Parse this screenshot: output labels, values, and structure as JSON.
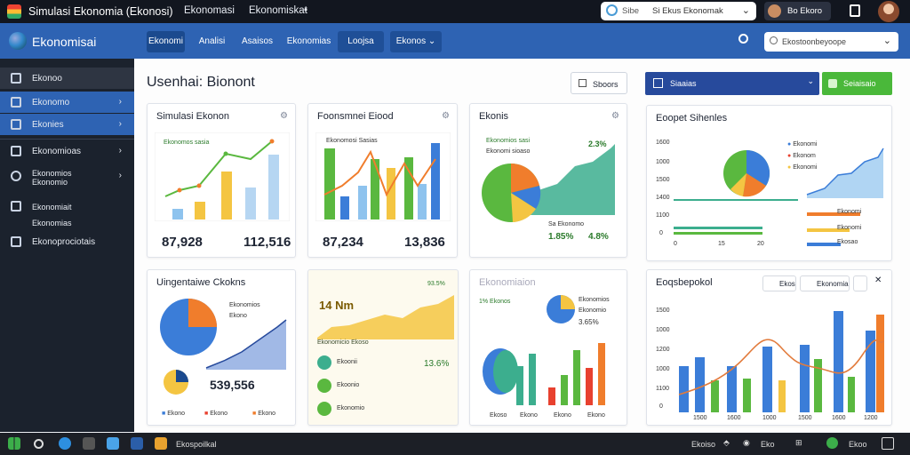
{
  "titlebar": {
    "title": "Simulasi Ekonomia (Ekonosi)",
    "menu": [
      "Ekonomasi",
      "Ekonomiskat"
    ],
    "search_text": "Si Ekus Ekonomak",
    "user_label": "Bo Ekoro"
  },
  "navbar": {
    "brand": "Ekonomisai",
    "tabs": [
      "Ekonomi",
      "Analisi",
      "Asaisos",
      "Ekonomias",
      "Loojsa",
      "Ekonos"
    ],
    "search_placeholder": "Ekostoonbeyoope"
  },
  "sidebar": {
    "items": [
      {
        "label": "Ekonoo",
        "icon": "monitor-icon"
      },
      {
        "label": "Ekonomo",
        "icon": "grid-icon",
        "chevron": "›"
      },
      {
        "label": "Ekonies",
        "icon": "tree-icon",
        "chevron": "›"
      },
      {
        "label": "Ekonomioas",
        "icon": "doc-icon",
        "chevron": "›"
      },
      {
        "label": "Ekonomios\nEkonomio",
        "icon": "link-icon",
        "chevron": "›"
      },
      {
        "label": "Ekonomiait\nEkonomias",
        "icon": "card-icon"
      },
      {
        "label": "Ekonoprociotais",
        "icon": "box-icon"
      }
    ]
  },
  "page": {
    "title": "Usenhai: Bionont",
    "share_label": "Sboors",
    "select_label": "Siaaias",
    "green_button": "Seiaisaio"
  },
  "cards": {
    "c1": {
      "title": "Simulasi Ekonon",
      "value_left": "87,928",
      "value_right": "112,516",
      "legend": "Ekonomos sasia"
    },
    "c2": {
      "title": "Foonsmnei Eiood",
      "value_left": "87,234",
      "value_right": "13,836",
      "legend": "Ekonomosi Sasias"
    },
    "c3": {
      "title": "Ekonis",
      "legend_top": "Ekonomios sasi",
      "legend_sub": "Ekonomi sioaso",
      "pct_top": "2.3%",
      "legend_mid": "Sa Ekonomo",
      "pct_left": "1.85%",
      "pct_right": "4.8%"
    },
    "c4": {
      "title": "Eoopet Sihenles",
      "legend": [
        "Ekonomi",
        "Ekonom",
        "Ekonomi"
      ],
      "axis": [
        "1600",
        "1000",
        "1500",
        "1400",
        "1100",
        "0"
      ],
      "pills": [
        "Ekonomi",
        "Ekonomi",
        "Ekosao"
      ],
      "bottom_axis": [
        "0",
        "15",
        "20"
      ]
    },
    "c5": {
      "title": "Uingentaiwe Ckokns",
      "legend_a": "Ekonomios",
      "legend_b": "Ekono",
      "value": "539,556",
      "legend": [
        "Ekono",
        "Ekono",
        "Ekono"
      ]
    },
    "c6": {
      "title": "14 Nm",
      "pct_top": "93.5%",
      "legend": "Ekonomicio Ekoso",
      "rows": [
        "Ekoonii",
        "Ekoonio",
        "Ekonomio"
      ],
      "pct": "13.6%"
    },
    "c7": {
      "title": "Ekonomiaion",
      "value": "1% Ekonos",
      "legend": [
        "Ekonomios",
        "Ekonomio"
      ],
      "pct": "3.65%",
      "legend_bottom": [
        "Ekoso",
        "Ekono",
        "Ekono",
        "Ekono"
      ]
    },
    "c8": {
      "title": "Eoqsbepokol",
      "tools": [
        "Ekos",
        "Ekonomia"
      ],
      "axis_y": [
        "1500",
        "1000",
        "1200",
        "1000",
        "1100",
        "0"
      ],
      "axis_x": [
        "1500",
        "1600",
        "1000",
        "1500",
        "1600",
        "1200"
      ]
    }
  },
  "taskbar": {
    "app_label": "Ekospoilkal",
    "tray": [
      "Ekoiso",
      "Eko",
      "Ekoo"
    ]
  },
  "colors": {
    "blue": "#3b7dd8",
    "green": "#5ab83f",
    "orange": "#f07d2c",
    "yellow": "#f4c542",
    "red": "#e8412f",
    "teal": "#3cae8e"
  }
}
